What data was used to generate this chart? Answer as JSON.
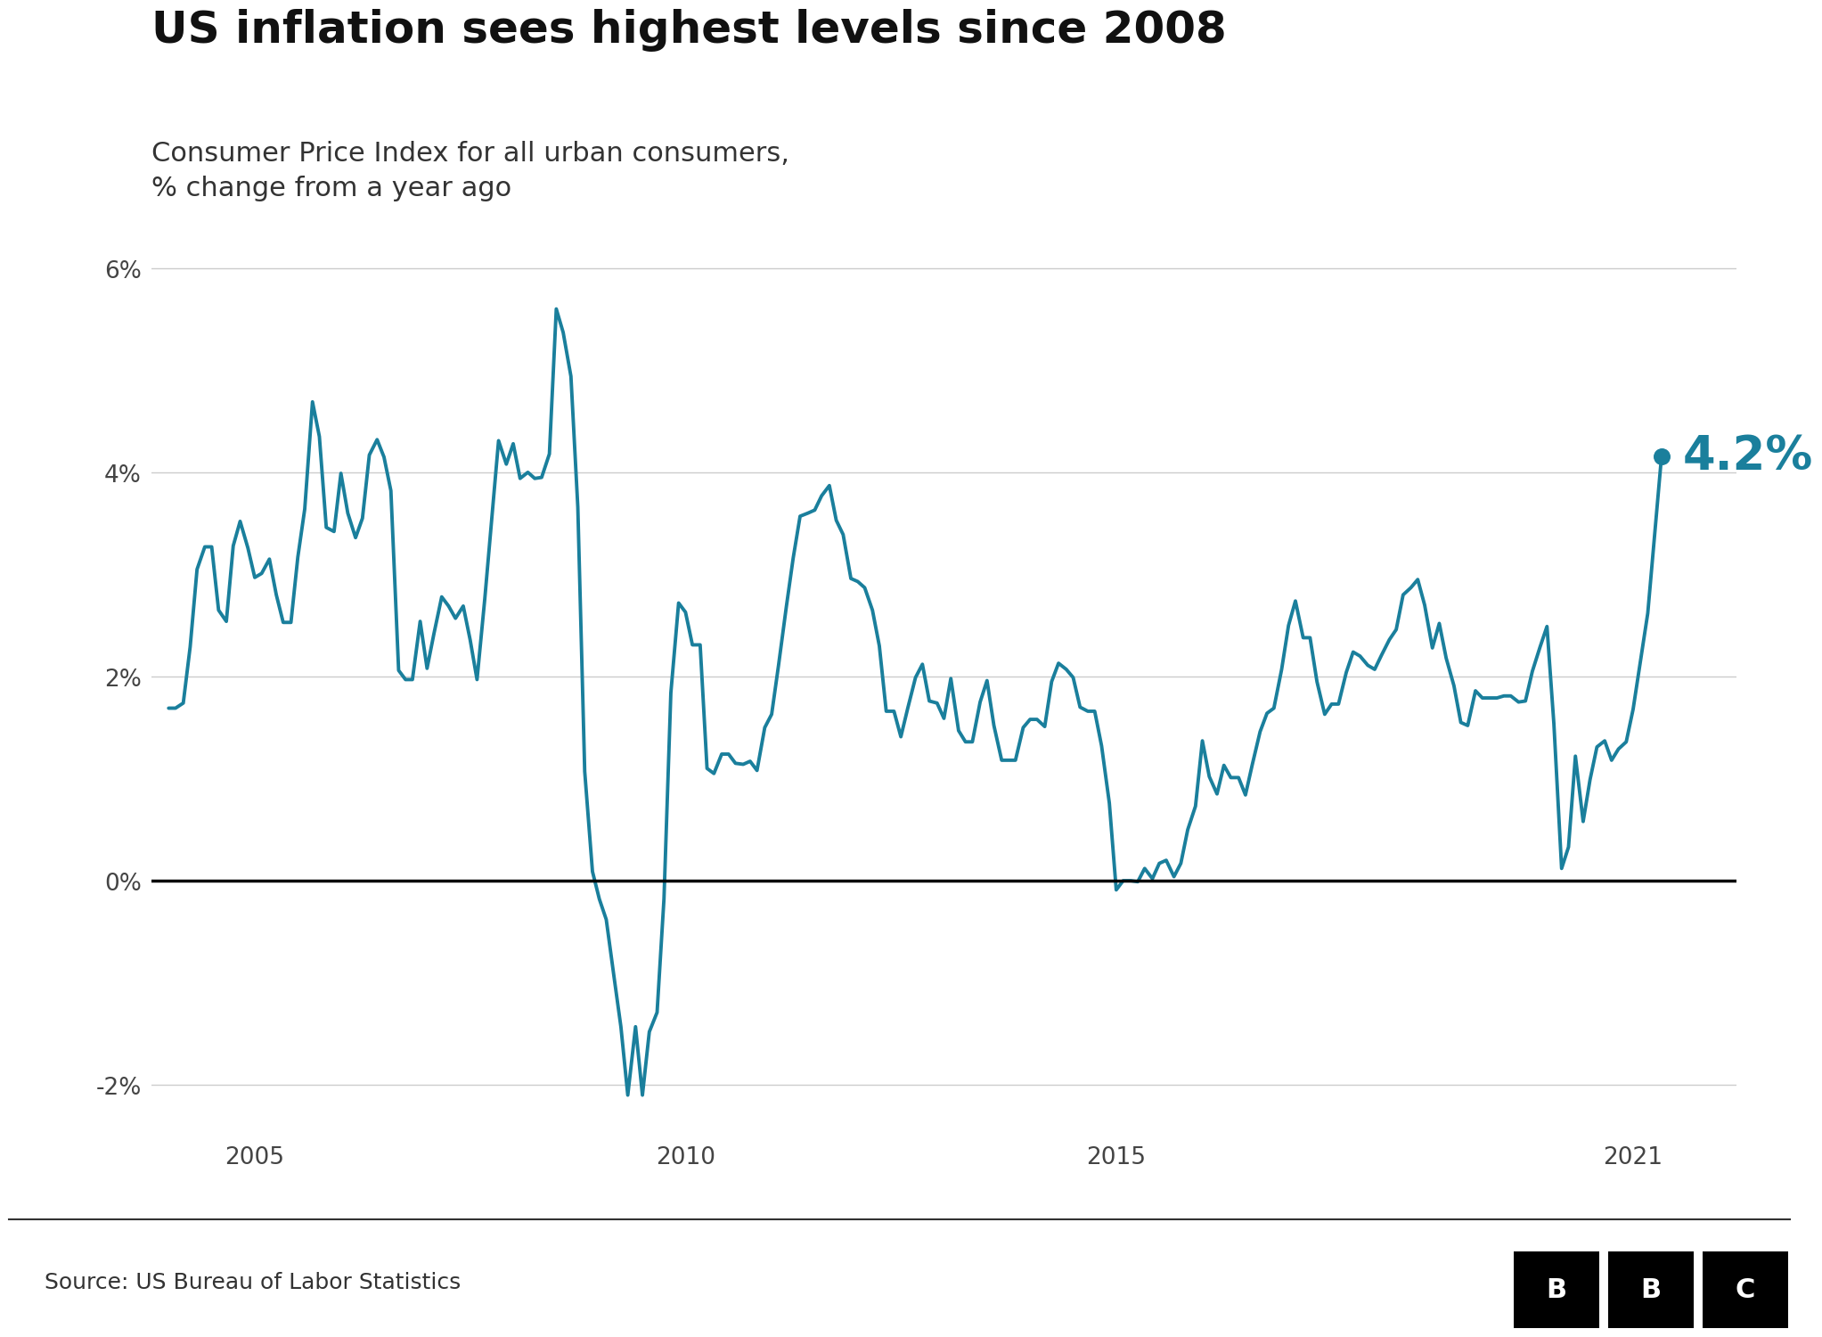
{
  "title": "US inflation sees highest levels since 2008",
  "subtitle": "Consumer Price Index for all urban consumers,\n% change from a year ago",
  "source": "Source: US Bureau of Labor Statistics",
  "line_color": "#1a7f9c",
  "annotation_value": "4.2%",
  "annotation_color": "#1a7f9c",
  "background_color": "#ffffff",
  "title_fontsize": 36,
  "subtitle_fontsize": 22,
  "tick_fontsize": 19,
  "annotation_fontsize": 38,
  "line_width": 2.8,
  "ylim": [
    -2.5,
    6.5
  ],
  "yticks": [
    -2,
    0,
    2,
    4,
    6
  ],
  "ytick_labels": [
    "-2%",
    "0%",
    "2%",
    "4%",
    "6%"
  ],
  "xtick_positions": [
    2005,
    2010,
    2015,
    2021
  ],
  "xtick_labels": [
    "2005",
    "2010",
    "2015",
    "2021"
  ],
  "xlim": [
    2003.8,
    2022.2
  ],
  "dates": [
    2004.0,
    2004.08,
    2004.17,
    2004.25,
    2004.33,
    2004.42,
    2004.5,
    2004.58,
    2004.67,
    2004.75,
    2004.83,
    2004.92,
    2005.0,
    2005.08,
    2005.17,
    2005.25,
    2005.33,
    2005.42,
    2005.5,
    2005.58,
    2005.67,
    2005.75,
    2005.83,
    2005.92,
    2006.0,
    2006.08,
    2006.17,
    2006.25,
    2006.33,
    2006.42,
    2006.5,
    2006.58,
    2006.67,
    2006.75,
    2006.83,
    2006.92,
    2007.0,
    2007.08,
    2007.17,
    2007.25,
    2007.33,
    2007.42,
    2007.5,
    2007.58,
    2007.67,
    2007.75,
    2007.83,
    2007.92,
    2008.0,
    2008.08,
    2008.17,
    2008.25,
    2008.33,
    2008.42,
    2008.5,
    2008.58,
    2008.67,
    2008.75,
    2008.83,
    2008.92,
    2009.0,
    2009.08,
    2009.17,
    2009.25,
    2009.33,
    2009.42,
    2009.5,
    2009.58,
    2009.67,
    2009.75,
    2009.83,
    2009.92,
    2010.0,
    2010.08,
    2010.17,
    2010.25,
    2010.33,
    2010.42,
    2010.5,
    2010.58,
    2010.67,
    2010.75,
    2010.83,
    2010.92,
    2011.0,
    2011.08,
    2011.17,
    2011.25,
    2011.33,
    2011.42,
    2011.5,
    2011.58,
    2011.67,
    2011.75,
    2011.83,
    2011.92,
    2012.0,
    2012.08,
    2012.17,
    2012.25,
    2012.33,
    2012.42,
    2012.5,
    2012.58,
    2012.67,
    2012.75,
    2012.83,
    2012.92,
    2013.0,
    2013.08,
    2013.17,
    2013.25,
    2013.33,
    2013.42,
    2013.5,
    2013.58,
    2013.67,
    2013.75,
    2013.83,
    2013.92,
    2014.0,
    2014.08,
    2014.17,
    2014.25,
    2014.33,
    2014.42,
    2014.5,
    2014.58,
    2014.67,
    2014.75,
    2014.83,
    2014.92,
    2015.0,
    2015.08,
    2015.17,
    2015.25,
    2015.33,
    2015.42,
    2015.5,
    2015.58,
    2015.67,
    2015.75,
    2015.83,
    2015.92,
    2016.0,
    2016.08,
    2016.17,
    2016.25,
    2016.33,
    2016.42,
    2016.5,
    2016.58,
    2016.67,
    2016.75,
    2016.83,
    2016.92,
    2017.0,
    2017.08,
    2017.17,
    2017.25,
    2017.33,
    2017.42,
    2017.5,
    2017.58,
    2017.67,
    2017.75,
    2017.83,
    2017.92,
    2018.0,
    2018.08,
    2018.17,
    2018.25,
    2018.33,
    2018.42,
    2018.5,
    2018.58,
    2018.67,
    2018.75,
    2018.83,
    2018.92,
    2019.0,
    2019.08,
    2019.17,
    2019.25,
    2019.33,
    2019.42,
    2019.5,
    2019.58,
    2019.67,
    2019.75,
    2019.83,
    2019.92,
    2020.0,
    2020.08,
    2020.17,
    2020.25,
    2020.33,
    2020.42,
    2020.5,
    2020.58,
    2020.67,
    2020.75,
    2020.83,
    2020.92,
    2021.0,
    2021.17,
    2021.33
  ],
  "values": [
    1.69,
    1.69,
    1.74,
    2.29,
    3.05,
    3.27,
    3.27,
    2.65,
    2.54,
    3.28,
    3.52,
    3.26,
    2.97,
    3.01,
    3.15,
    2.8,
    2.53,
    2.53,
    3.17,
    3.64,
    4.69,
    4.35,
    3.46,
    3.42,
    3.99,
    3.6,
    3.36,
    3.55,
    4.17,
    4.32,
    4.15,
    3.82,
    2.06,
    1.97,
    1.97,
    2.54,
    2.08,
    2.42,
    2.78,
    2.69,
    2.57,
    2.69,
    2.36,
    1.97,
    2.76,
    3.54,
    4.31,
    4.08,
    4.28,
    3.94,
    4.0,
    3.94,
    3.95,
    4.18,
    5.6,
    5.37,
    4.94,
    3.66,
    1.07,
    0.09,
    -0.18,
    -0.38,
    -0.94,
    -1.43,
    -2.1,
    -1.43,
    -2.1,
    -1.48,
    -1.29,
    -0.18,
    1.84,
    2.72,
    2.63,
    2.31,
    2.31,
    1.1,
    1.05,
    1.24,
    1.24,
    1.15,
    1.14,
    1.17,
    1.08,
    1.5,
    1.63,
    2.11,
    2.68,
    3.16,
    3.57,
    3.6,
    3.63,
    3.77,
    3.87,
    3.53,
    3.39,
    2.96,
    2.93,
    2.87,
    2.65,
    2.3,
    1.66,
    1.66,
    1.41,
    1.69,
    1.99,
    2.12,
    1.76,
    1.74,
    1.59,
    1.98,
    1.47,
    1.36,
    1.36,
    1.75,
    1.96,
    1.52,
    1.18,
    1.18,
    1.18,
    1.5,
    1.58,
    1.58,
    1.51,
    1.95,
    2.13,
    2.07,
    1.99,
    1.7,
    1.66,
    1.66,
    1.32,
    0.76,
    -0.09,
    0.0,
    0.0,
    -0.01,
    0.12,
    0.02,
    0.17,
    0.2,
    0.04,
    0.17,
    0.5,
    0.73,
    1.37,
    1.02,
    0.85,
    1.13,
    1.01,
    1.01,
    0.84,
    1.14,
    1.46,
    1.64,
    1.69,
    2.07,
    2.5,
    2.74,
    2.38,
    2.38,
    1.95,
    1.63,
    1.73,
    1.73,
    2.04,
    2.24,
    2.2,
    2.11,
    2.07,
    2.21,
    2.36,
    2.46,
    2.8,
    2.87,
    2.95,
    2.7,
    2.28,
    2.52,
    2.18,
    1.91,
    1.55,
    1.52,
    1.86,
    1.79,
    1.79,
    1.79,
    1.81,
    1.81,
    1.75,
    1.76,
    2.05,
    2.29,
    2.49,
    1.54,
    0.12,
    0.33,
    1.22,
    0.58,
    0.99,
    1.31,
    1.37,
    1.18,
    1.29,
    1.36,
    1.68,
    2.62,
    4.16
  ],
  "last_date": 2021.33,
  "last_value": 4.16
}
